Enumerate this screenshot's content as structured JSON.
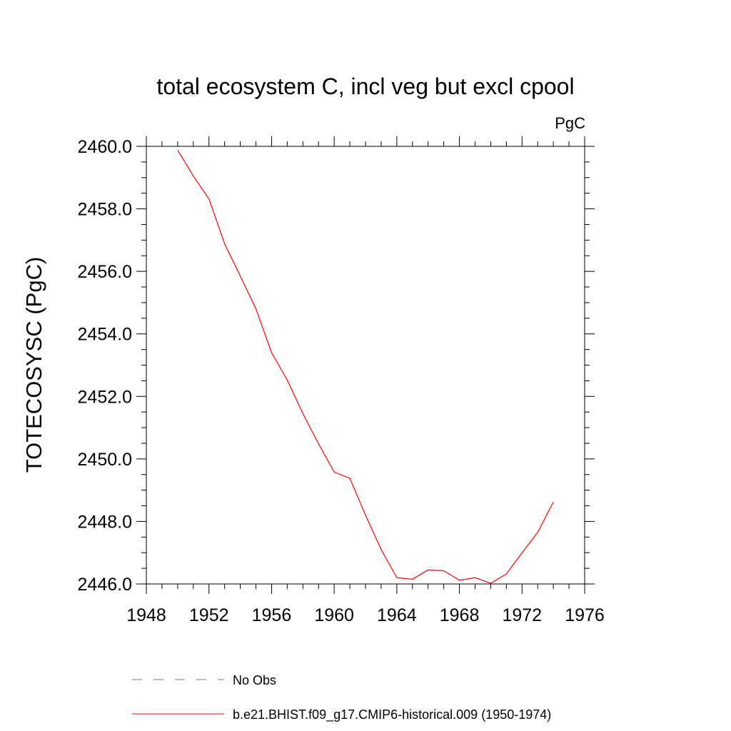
{
  "chart_data": {
    "type": "line",
    "title": "total ecosystem C, incl veg but excl cpool",
    "units": "PgC",
    "xlabel": "",
    "ylabel": "TOTECOSYSC  (PgC)",
    "xlim": [
      1948,
      1976
    ],
    "ylim": [
      2446.0,
      2460.0
    ],
    "x_ticks": [
      1948,
      1952,
      1956,
      1960,
      1964,
      1968,
      1972,
      1976
    ],
    "x_tick_labels": [
      "1948",
      "1952",
      "1956",
      "1960",
      "1964",
      "1968",
      "1972",
      "1976"
    ],
    "y_ticks": [
      2446.0,
      2448.0,
      2450.0,
      2452.0,
      2454.0,
      2456.0,
      2458.0,
      2460.0
    ],
    "y_tick_labels": [
      "2446.0",
      "2448.0",
      "2450.0",
      "2452.0",
      "2454.0",
      "2456.0",
      "2458.0",
      "2460.0"
    ],
    "series": [
      {
        "name": "b.e21.BHIST.f09_g17.CMIP6-historical.009 (1950-1974)",
        "color": "#ff0000",
        "style": "solid",
        "x": [
          1950,
          1951,
          1952,
          1953,
          1954,
          1955,
          1956,
          1957,
          1958,
          1959,
          1960,
          1961,
          1962,
          1963,
          1964,
          1965,
          1966,
          1967,
          1968,
          1969,
          1970,
          1971,
          1972,
          1973,
          1974
        ],
        "y": [
          2459.88,
          2459.05,
          2458.32,
          2456.88,
          2455.85,
          2454.8,
          2453.4,
          2452.52,
          2451.45,
          2450.48,
          2449.58,
          2449.38,
          2448.2,
          2447.1,
          2446.2,
          2446.15,
          2446.45,
          2446.42,
          2446.12,
          2446.2,
          2446.02,
          2446.32,
          2447.0,
          2447.65,
          2448.62
        ]
      }
    ],
    "legend": [
      {
        "label": "No Obs",
        "color": "#7b68b0",
        "style": "dashed"
      },
      {
        "label": "b.e21.BHIST.f09_g17.CMIP6-historical.009 (1950-1974)",
        "color": "#ff0000",
        "style": "solid"
      }
    ],
    "legend_position": "bottom"
  }
}
